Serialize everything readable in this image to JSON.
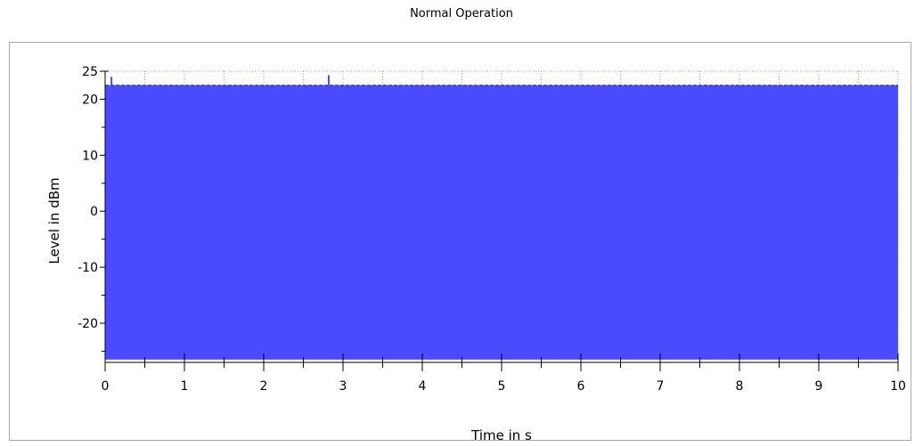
{
  "chart_data": {
    "type": "area",
    "title": "Normal Operation",
    "xlabel": "Time in s",
    "ylabel": "Level in dBm",
    "xlim": [
      0,
      10
    ],
    "ylim": [
      -27,
      25
    ],
    "xticks": [
      0,
      1,
      2,
      3,
      4,
      5,
      6,
      7,
      8,
      9,
      10
    ],
    "yticks": [
      25,
      20,
      10,
      0,
      -10,
      -20
    ],
    "grid": true,
    "series": [
      {
        "color": "#4a4aff",
        "band": {
          "x": [
            0,
            10
          ],
          "y_low": -26.5,
          "y_high": 22.5
        },
        "spikes": [
          {
            "x": 0.08,
            "y": 24.0
          },
          {
            "x": 2.82,
            "y": 24.3
          }
        ]
      }
    ]
  },
  "colors": {
    "fill": "#4a4aff",
    "grid": "#9a9a9a",
    "axis": "#000000"
  }
}
